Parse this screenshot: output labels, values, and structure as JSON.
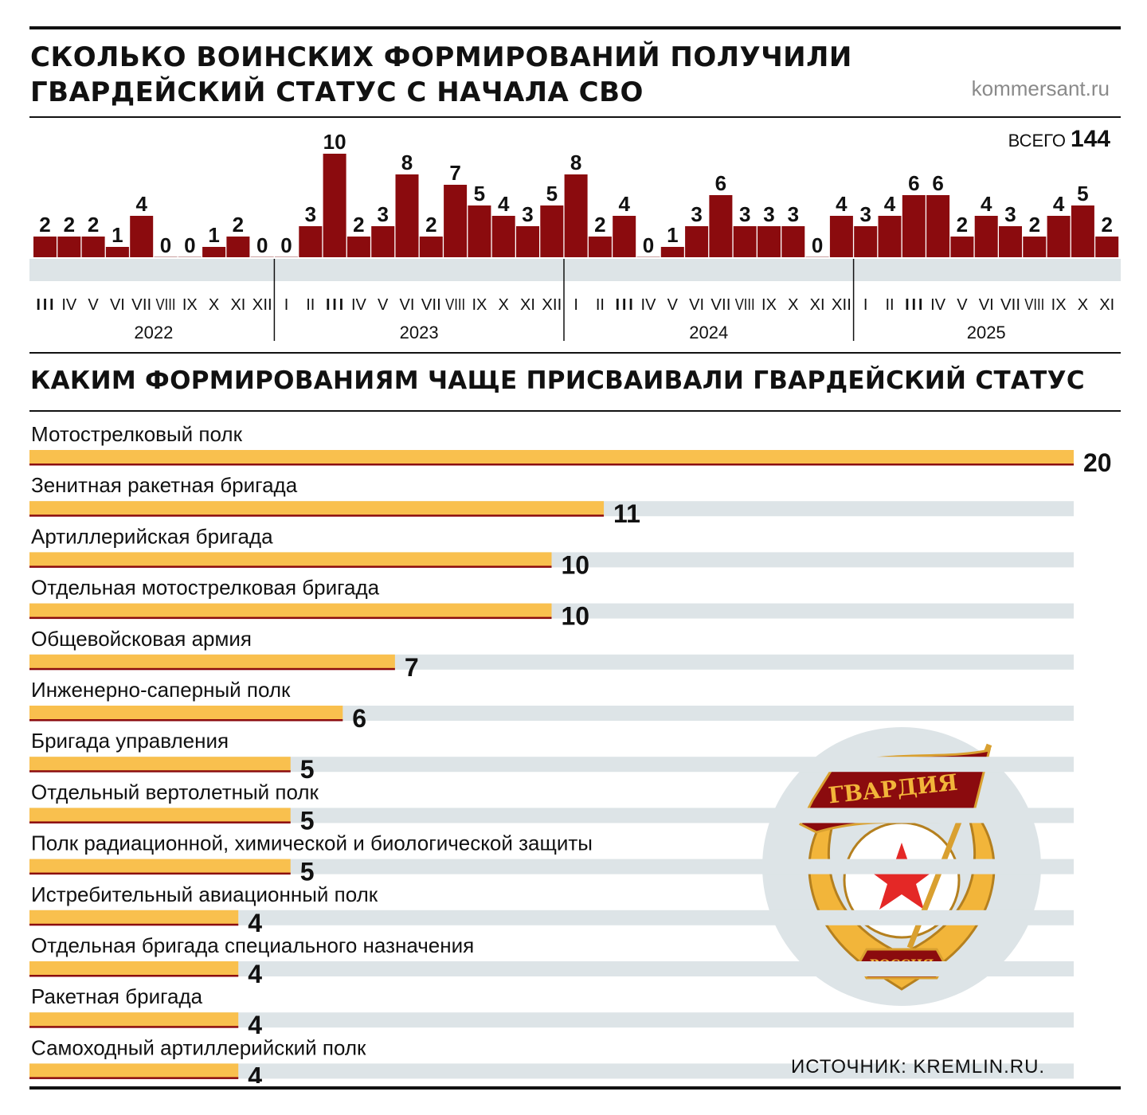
{
  "header": {
    "title": "Сколько воинских формирований получили гвардейский статус с начала СВО",
    "brand": "kommersant.ru",
    "total_label": "ВСЕГО",
    "total_value": "144"
  },
  "section2": {
    "title": "Каким формированиям чаще присваивали гвардейский статус"
  },
  "footer": {
    "source": "Источник: kremlin.ru."
  },
  "emblem": {
    "banner_text": "ГВАРДИЯ",
    "ribbon_text": "РОССИЯ"
  },
  "colors": {
    "bar_dark_red": "#8b0b0e",
    "bar_orange": "#f9c04e",
    "bar_underline": "#8b0b0e",
    "track_gray": "#dde4e7",
    "emblem_circle": "#dde4e7"
  },
  "chart_data": [
    {
      "type": "bar",
      "groups": [
        {
          "year": "2022",
          "months": [
            "III",
            "IV",
            "V",
            "VI",
            "VII",
            "VIII",
            "IX",
            "X",
            "XI",
            "XII"
          ],
          "values": [
            2,
            2,
            2,
            1,
            4,
            0,
            0,
            1,
            2,
            0
          ]
        },
        {
          "year": "2023",
          "months": [
            "I",
            "II",
            "III",
            "IV",
            "V",
            "VI",
            "VII",
            "VIII",
            "IX",
            "X",
            "XI",
            "XII"
          ],
          "values": [
            0,
            3,
            10,
            2,
            3,
            8,
            2,
            7,
            5,
            4,
            3,
            5
          ]
        },
        {
          "year": "2024",
          "months": [
            "I",
            "II",
            "III",
            "IV",
            "V",
            "VI",
            "VII",
            "VIII",
            "IX",
            "X",
            "XI",
            "XII"
          ],
          "values": [
            8,
            2,
            4,
            0,
            1,
            3,
            6,
            3,
            3,
            3,
            0,
            4
          ]
        },
        {
          "year": "2025",
          "months": [
            "I",
            "II",
            "III",
            "IV",
            "V",
            "VI",
            "VII",
            "VIII",
            "IX",
            "X",
            "XI"
          ],
          "values": [
            3,
            4,
            6,
            6,
            2,
            4,
            3,
            2,
            4,
            5,
            2
          ]
        }
      ],
      "ylim": [
        0,
        10
      ]
    },
    {
      "type": "bar",
      "orientation": "horizontal",
      "categories": [
        "Мотострелковый полк",
        "Зенитная ракетная бригада",
        "Артиллерийская бригада",
        "Отдельная мотострелковая бригада",
        "Общевойсковая армия",
        "Инженерно-саперный полк",
        "Бригада управления",
        "Отдельный вертолетный полк",
        "Полк радиационной, химической и биологической защиты",
        "Истребительный авиационный полк",
        "Отдельная бригада специального назначения",
        "Ракетная бригада",
        "Самоходный артиллерийский полк"
      ],
      "values": [
        20,
        11,
        10,
        10,
        7,
        6,
        5,
        5,
        5,
        4,
        4,
        4,
        4
      ],
      "xlim": [
        0,
        20
      ]
    }
  ]
}
